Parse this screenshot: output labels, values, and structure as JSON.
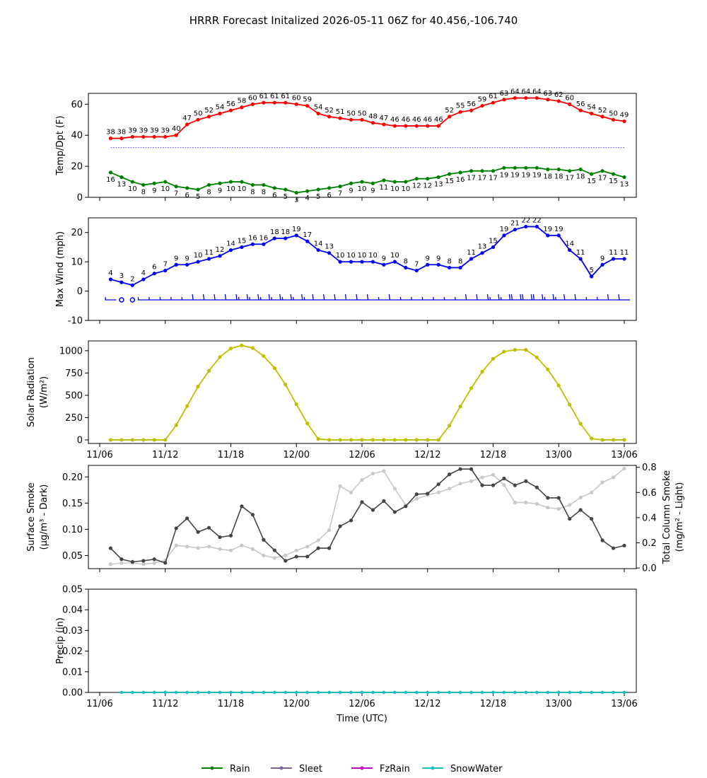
{
  "title": "HRRR Forecast Initalized 2026-05-11 06Z for 40.456,-106.740",
  "x_axis": {
    "label": "Time (UTC)",
    "ticks": [
      {
        "h": 0,
        "label": "11/06"
      },
      {
        "h": 6,
        "label": "11/12"
      },
      {
        "h": 12,
        "label": "11/18"
      },
      {
        "h": 18,
        "label": "12/00"
      },
      {
        "h": 24,
        "label": "12/06"
      },
      {
        "h": 30,
        "label": "12/12"
      },
      {
        "h": 36,
        "label": "12/18"
      },
      {
        "h": 42,
        "label": "13/00"
      },
      {
        "h": 48,
        "label": "13/06"
      }
    ]
  },
  "legend": [
    {
      "label": "Rain",
      "color": "#008000"
    },
    {
      "label": "Sleet",
      "color": "#8064a2"
    },
    {
      "label": "FzRain",
      "color": "#c000c0"
    },
    {
      "label": "SnowWater",
      "color": "#17becf"
    }
  ],
  "chart_data": [
    {
      "type": "line",
      "ylabel": "Temp/Dpt (F)",
      "ylim": [
        0,
        67
      ],
      "yticks": [
        0,
        20,
        40,
        60
      ],
      "x_hours": [
        1,
        2,
        3,
        4,
        5,
        6,
        7,
        8,
        9,
        10,
        11,
        12,
        13,
        14,
        15,
        16,
        17,
        18,
        19,
        20,
        21,
        22,
        23,
        24,
        25,
        26,
        27,
        28,
        29,
        30,
        31,
        32,
        33,
        34,
        35,
        36,
        37,
        38,
        39,
        40,
        41,
        42,
        43,
        44,
        45,
        46,
        47,
        48
      ],
      "reference_line": {
        "value": 32,
        "color": "#0000ff"
      },
      "series": [
        {
          "key": "temp",
          "color": "#ff0000",
          "label_side": "above",
          "values": [
            38,
            38,
            39,
            39,
            39,
            39,
            40,
            47,
            50,
            52,
            54,
            56,
            58,
            60,
            61,
            61,
            61,
            60,
            59,
            54,
            52,
            51,
            50,
            50,
            48,
            47,
            46,
            46,
            46,
            46,
            46,
            52,
            55,
            56,
            59,
            61,
            63,
            64,
            64,
            64,
            63,
            62,
            60,
            56,
            54,
            52,
            50,
            49
          ]
        },
        {
          "key": "dewpoint",
          "color": "#008000",
          "label_side": "below",
          "values": [
            16,
            13,
            10,
            8,
            9,
            10,
            7,
            6,
            5,
            8,
            9,
            10,
            10,
            8,
            8,
            6,
            5,
            3,
            4,
            5,
            6,
            7,
            9,
            10,
            9,
            11,
            10,
            10,
            12,
            12,
            13,
            15,
            16,
            17,
            17,
            17,
            19,
            19,
            19,
            19,
            18,
            18,
            17,
            18,
            15,
            17,
            15,
            13
          ]
        }
      ]
    },
    {
      "type": "line",
      "ylabel": "Max Wind (mph)",
      "ylim": [
        -10,
        25
      ],
      "yticks": [
        -10,
        0,
        10,
        20
      ],
      "x_hours": [
        1,
        2,
        3,
        4,
        5,
        6,
        7,
        8,
        9,
        10,
        11,
        12,
        13,
        14,
        15,
        16,
        17,
        18,
        19,
        20,
        21,
        22,
        23,
        24,
        25,
        26,
        27,
        28,
        29,
        30,
        31,
        32,
        33,
        34,
        35,
        36,
        37,
        38,
        39,
        40,
        41,
        42,
        43,
        44,
        45,
        46,
        47,
        48
      ],
      "series": [
        {
          "key": "max_wind",
          "color": "#0000ff",
          "label_side": "above",
          "values": [
            4,
            3,
            2,
            4,
            6,
            7,
            9,
            9,
            10,
            11,
            12,
            14,
            15,
            16,
            16,
            18,
            18,
            19,
            17,
            14,
            13,
            10,
            10,
            10,
            10,
            9,
            10,
            8,
            7,
            9,
            9,
            8,
            8,
            11,
            13,
            15,
            19,
            21,
            22,
            22,
            19,
            19,
            14,
            11,
            5,
            9,
            11,
            11
          ]
        }
      ],
      "wind_barbs": {
        "baseline": -3,
        "color": "#0000ff",
        "calm_hours": [
          2,
          3
        ]
      }
    },
    {
      "type": "line",
      "ylabel": "Solar Radiation (W/m²)",
      "ylim": [
        -40,
        1110
      ],
      "yticks": [
        0,
        250,
        500,
        750,
        1000
      ],
      "x_hours": [
        1,
        2,
        3,
        4,
        5,
        6,
        7,
        8,
        9,
        10,
        11,
        12,
        13,
        14,
        15,
        16,
        17,
        18,
        19,
        20,
        21,
        22,
        23,
        24,
        25,
        26,
        27,
        28,
        29,
        30,
        31,
        32,
        33,
        34,
        35,
        36,
        37,
        38,
        39,
        40,
        41,
        42,
        43,
        44,
        45,
        46,
        47,
        48
      ],
      "series": [
        {
          "key": "solar",
          "color": "#bfbf00",
          "values": [
            0,
            0,
            0,
            0,
            0,
            0,
            165,
            380,
            600,
            775,
            930,
            1025,
            1060,
            1030,
            940,
            805,
            620,
            400,
            185,
            10,
            0,
            0,
            0,
            0,
            0,
            0,
            0,
            0,
            0,
            0,
            0,
            160,
            375,
            580,
            765,
            910,
            990,
            1010,
            1010,
            925,
            790,
            610,
            395,
            180,
            15,
            0,
            0,
            0
          ]
        }
      ]
    },
    {
      "type": "line",
      "ylabel": "Surface Smoke (μg/m³ - Dark)",
      "ylabel_right": "Total Column Smoke (mg/m² - Light)",
      "ylim": [
        0.025,
        0.222
      ],
      "yticks": [
        0.05,
        0.1,
        0.15,
        0.2
      ],
      "ylim_right": [
        -0.005,
        0.815
      ],
      "yticks_right": [
        0.0,
        0.2,
        0.4,
        0.6,
        0.8
      ],
      "x_hours": [
        1,
        2,
        3,
        4,
        5,
        6,
        7,
        8,
        9,
        10,
        11,
        12,
        13,
        14,
        15,
        16,
        17,
        18,
        19,
        20,
        21,
        22,
        23,
        24,
        25,
        26,
        27,
        28,
        29,
        30,
        31,
        32,
        33,
        34,
        35,
        36,
        37,
        38,
        39,
        40,
        41,
        42,
        43,
        44,
        45,
        46,
        47,
        48
      ],
      "series": [
        {
          "key": "surface_smoke",
          "axis": "left",
          "color": "#444444",
          "values": [
            0.064,
            0.043,
            0.038,
            0.04,
            0.043,
            0.036,
            0.102,
            0.121,
            0.095,
            0.103,
            0.085,
            0.088,
            0.144,
            0.128,
            0.08,
            0.06,
            0.04,
            0.048,
            0.048,
            0.064,
            0.064,
            0.106,
            0.117,
            0.152,
            0.137,
            0.154,
            0.133,
            0.144,
            0.167,
            0.168,
            0.186,
            0.205,
            0.215,
            0.215,
            0.184,
            0.184,
            0.197,
            0.184,
            0.192,
            0.18,
            0.16,
            0.16,
            0.12,
            0.137,
            0.12,
            0.079,
            0.064,
            0.069
          ]
        },
        {
          "key": "column_smoke",
          "axis": "right",
          "color": "#c8c8c8",
          "values": [
            0.03,
            0.04,
            0.04,
            0.03,
            0.04,
            0.06,
            0.18,
            0.17,
            0.16,
            0.17,
            0.15,
            0.14,
            0.18,
            0.15,
            0.1,
            0.08,
            0.1,
            0.14,
            0.17,
            0.22,
            0.3,
            0.65,
            0.6,
            0.7,
            0.75,
            0.77,
            0.63,
            0.5,
            0.55,
            0.58,
            0.6,
            0.63,
            0.67,
            0.69,
            0.72,
            0.74,
            0.66,
            0.52,
            0.52,
            0.51,
            0.48,
            0.47,
            0.5,
            0.56,
            0.6,
            0.68,
            0.72,
            0.79
          ]
        }
      ]
    },
    {
      "type": "line",
      "ylabel": "Precip (in)",
      "ylim": [
        0,
        0.05
      ],
      "yticks": [
        0.0,
        0.01,
        0.02,
        0.03,
        0.04,
        0.05
      ],
      "x_hours": [
        2,
        3,
        4,
        5,
        6,
        7,
        8,
        9,
        10,
        11,
        12,
        13,
        14,
        15,
        16,
        17,
        18,
        19,
        20,
        21,
        22,
        23,
        24,
        25,
        26,
        27,
        28,
        29,
        30,
        31,
        32,
        33,
        34,
        35,
        36,
        37,
        38,
        39,
        40,
        41,
        42,
        43,
        44,
        45,
        46,
        47,
        48
      ],
      "series": [
        {
          "key": "rain",
          "color": "#008000",
          "values": [
            0,
            0,
            0,
            0,
            0,
            0,
            0,
            0,
            0,
            0,
            0,
            0,
            0,
            0,
            0,
            0,
            0,
            0,
            0,
            0,
            0,
            0,
            0,
            0,
            0,
            0,
            0,
            0,
            0,
            0,
            0,
            0,
            0,
            0,
            0,
            0,
            0,
            0,
            0,
            0,
            0,
            0,
            0,
            0,
            0,
            0,
            0
          ]
        },
        {
          "key": "snowwater",
          "color": "#17becf",
          "values": [
            0,
            0,
            0,
            0,
            0,
            0,
            0,
            0,
            0,
            0,
            0,
            0,
            0,
            0,
            0,
            0,
            0,
            0,
            0,
            0,
            0,
            0,
            0,
            0,
            0,
            0,
            0,
            0,
            0,
            0,
            0,
            0,
            0,
            0,
            0,
            0,
            0,
            0,
            0,
            0,
            0,
            0,
            0,
            0,
            0,
            0,
            0
          ]
        }
      ]
    }
  ]
}
